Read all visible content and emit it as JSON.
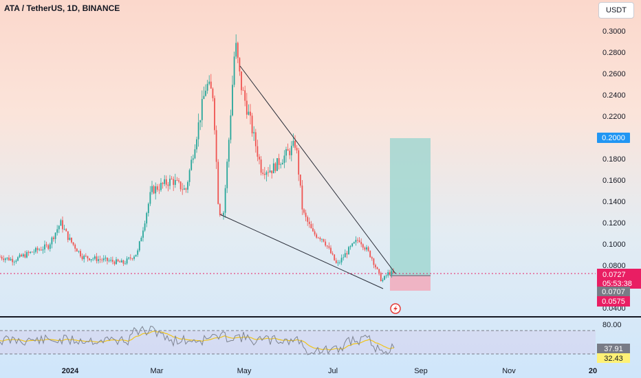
{
  "header": {
    "symbol_line": "ATA / TetherUS, 1D, BINANCE",
    "currency": "USDT"
  },
  "price_axis": {
    "ticks": [
      "0.3000",
      "0.2800",
      "0.2600",
      "0.2400",
      "0.2200",
      "0.1800",
      "0.1600",
      "0.1400",
      "0.1200",
      "0.1000",
      "0.0800",
      "0.0400"
    ],
    "tick_values": [
      0.3,
      0.28,
      0.26,
      0.24,
      0.22,
      0.18,
      0.16,
      0.14,
      0.12,
      0.1,
      0.08,
      0.04
    ]
  },
  "badges": {
    "target": "0.2000",
    "last_price": "0.0727",
    "countdown": "05:53:38",
    "entry": "0.0707",
    "stop": "0.0575"
  },
  "rsi_axis": {
    "top_label": "80.00",
    "rsi_value": "37.91",
    "rsi_ma_value": "32.43"
  },
  "time_axis": {
    "labels": [
      "2024",
      "Mar",
      "May",
      "Jul",
      "Sep",
      "Nov",
      "20"
    ]
  },
  "colors": {
    "up": "#26a69a",
    "down": "#ef5350",
    "last_price": "#e91e63",
    "target_badge": "#2196f3",
    "entry_badge": "#787b86",
    "rsi_ma_badge": "#fff176",
    "profit_zone": "#9ed6cf",
    "loss_zone": "#f4a6b8",
    "rsi_line": "#7e8491",
    "rsi_ma": "#f0c419",
    "alert_icon": "#e53935"
  },
  "icons": {
    "alert": "lightning-alert-icon"
  },
  "chart_data": {
    "type": "candlestick",
    "price_range": [
      0.04,
      0.3
    ],
    "position": {
      "target": 0.2,
      "entry": 0.0707,
      "stop": 0.0575
    },
    "falling_wedge": {
      "upper_line": [
        {
          "x": "2024-04-28",
          "y": 0.268
        },
        {
          "x": "2024-07-27",
          "y": 0.072
        }
      ],
      "lower_line": [
        {
          "x": "2024-04-12",
          "y": 0.128
        },
        {
          "x": "2024-07-21",
          "y": 0.058
        }
      ]
    },
    "rsi": {
      "levels": [
        80.0,
        70,
        30
      ],
      "last": 37.91,
      "ma_last": 32.43
    }
  }
}
